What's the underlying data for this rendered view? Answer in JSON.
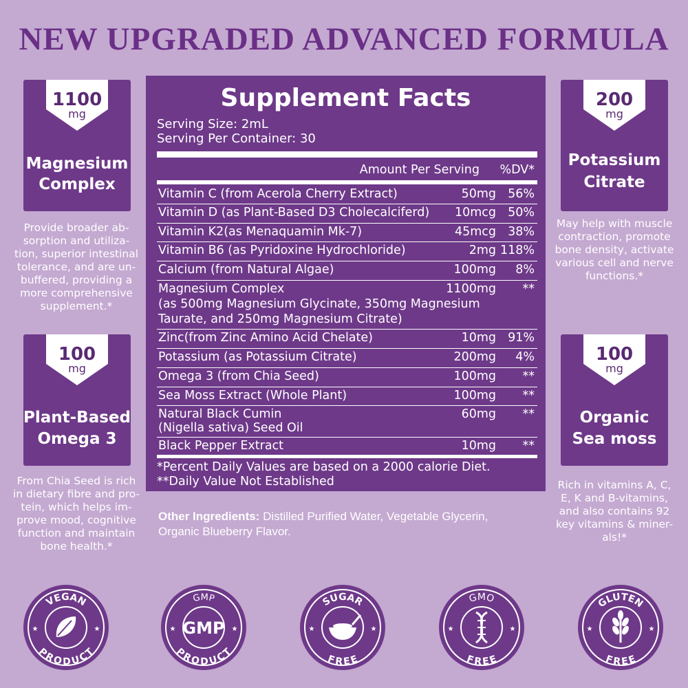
{
  "headline": "NEW UPGRADED ADVANCED FORMULA",
  "cards": {
    "magnesium": {
      "amount": "1100",
      "unit": "mg",
      "title_line1": "Magnesium",
      "title_line2": "Complex",
      "desc": [
        "Provide broader ab-",
        "sorption and utiliza-",
        "tion, superior intestinal",
        "tolerance, and are un-",
        "buffered, providing a",
        "more comprehensive",
        "supplement.*"
      ]
    },
    "potassium": {
      "amount": "200",
      "unit": "mg",
      "title_line1": "Potassium",
      "title_line2": "Citrate",
      "desc": [
        "May help with muscle",
        "contraction, promote",
        "bone density, activate",
        "various cell and nerve",
        "functions.*"
      ]
    },
    "omega": {
      "amount": "100",
      "unit": "mg",
      "title_line1": "Plant-Based",
      "title_line2": "Omega 3",
      "desc": [
        "From Chia Seed is rich",
        "in dietary fibre and pro-",
        "tein, which helps im-",
        "prove mood, cognitive",
        "function and maintain",
        "bone health.*"
      ]
    },
    "seamoss": {
      "amount": "100",
      "unit": "mg",
      "title_line1": "Organic",
      "title_line2": "Sea moss",
      "desc": [
        "Rich in vitamins A, C,",
        "E, K and B-vitamins,",
        "and also contains 92",
        "key vitamins & miner-",
        "als!*"
      ]
    }
  },
  "facts": {
    "title": "Supplement Facts",
    "serving_size": "Serving Size: 2mL",
    "serving_per_container": "Serving Per Container: 30",
    "header_amount": "Amount Per Serving",
    "header_dv": "%DV*",
    "rows": [
      {
        "name": "Vitamin C (from Acerola Cherry Extract)",
        "amount": "50mg",
        "dv": "56%"
      },
      {
        "name": "Vitamin D (as Plant-Based D3 Cholecalciferd)",
        "amount": "10mcg",
        "dv": "50%"
      },
      {
        "name": "Vitamin K2(as Menaquamin Mk-7)",
        "amount": "45mcg",
        "dv": "38%"
      },
      {
        "name": "Vitamin B6 (as Pyridoxine Hydrochloride)",
        "amount": "2mg",
        "dv": "118%"
      },
      {
        "name": "Calcium (from Natural Algae)",
        "amount": "100mg",
        "dv": "8%"
      },
      {
        "name": "Magnesium Complex",
        "name2": "(as 500mg Magnesium Glycinate, 350mg Magnesium",
        "name3": "Taurate, and 250mg Magnesium Citrate)",
        "amount": "1100mg",
        "dv": "**"
      },
      {
        "name": "Zinc(from Zinc Amino Acid Chelate)",
        "amount": "10mg",
        "dv": "91%"
      },
      {
        "name": "Potassium (as Potassium Citrate)",
        "amount": "200mg",
        "dv": "4%"
      },
      {
        "name": "Omega 3 (from Chia Seed)",
        "amount": "100mg",
        "dv": "**"
      },
      {
        "name": "Sea Moss Extract (Whole Plant)",
        "amount": "100mg",
        "dv": "**"
      },
      {
        "name": "Natural Black Cumin",
        "name2": "(Nigella sativa) Seed Oil",
        "amount": "60mg",
        "dv": "**"
      },
      {
        "name": "Black Pepper Extract",
        "amount": "10mg",
        "dv": "**"
      }
    ],
    "footnote1": "*Percent Daily Values are based on a 2000 calorie Diet.",
    "footnote2": "**Daily Value Not Established"
  },
  "other_ingredients": {
    "label": "Other Ingredients:",
    "line1": " Distilled Purified Water, Vegetable Glycerin,",
    "line2": "Organic Blueberry Flavor."
  },
  "badges": [
    {
      "top": "VEGAN",
      "bottom": "PRODUCT",
      "icon": "vegan-leaf-icon"
    },
    {
      "top": "GMP",
      "center": "GMP",
      "bottom": "PRODUCT",
      "icon": "gmp-shield-icon"
    },
    {
      "top": "SUGAR",
      "bottom": "FREE",
      "icon": "sugar-bowl-icon"
    },
    {
      "top": "GMO",
      "bottom": "FREE",
      "icon": "dna-icon"
    },
    {
      "top": "GLUTEN",
      "bottom": "FREE",
      "icon": "wheat-icon"
    }
  ]
}
